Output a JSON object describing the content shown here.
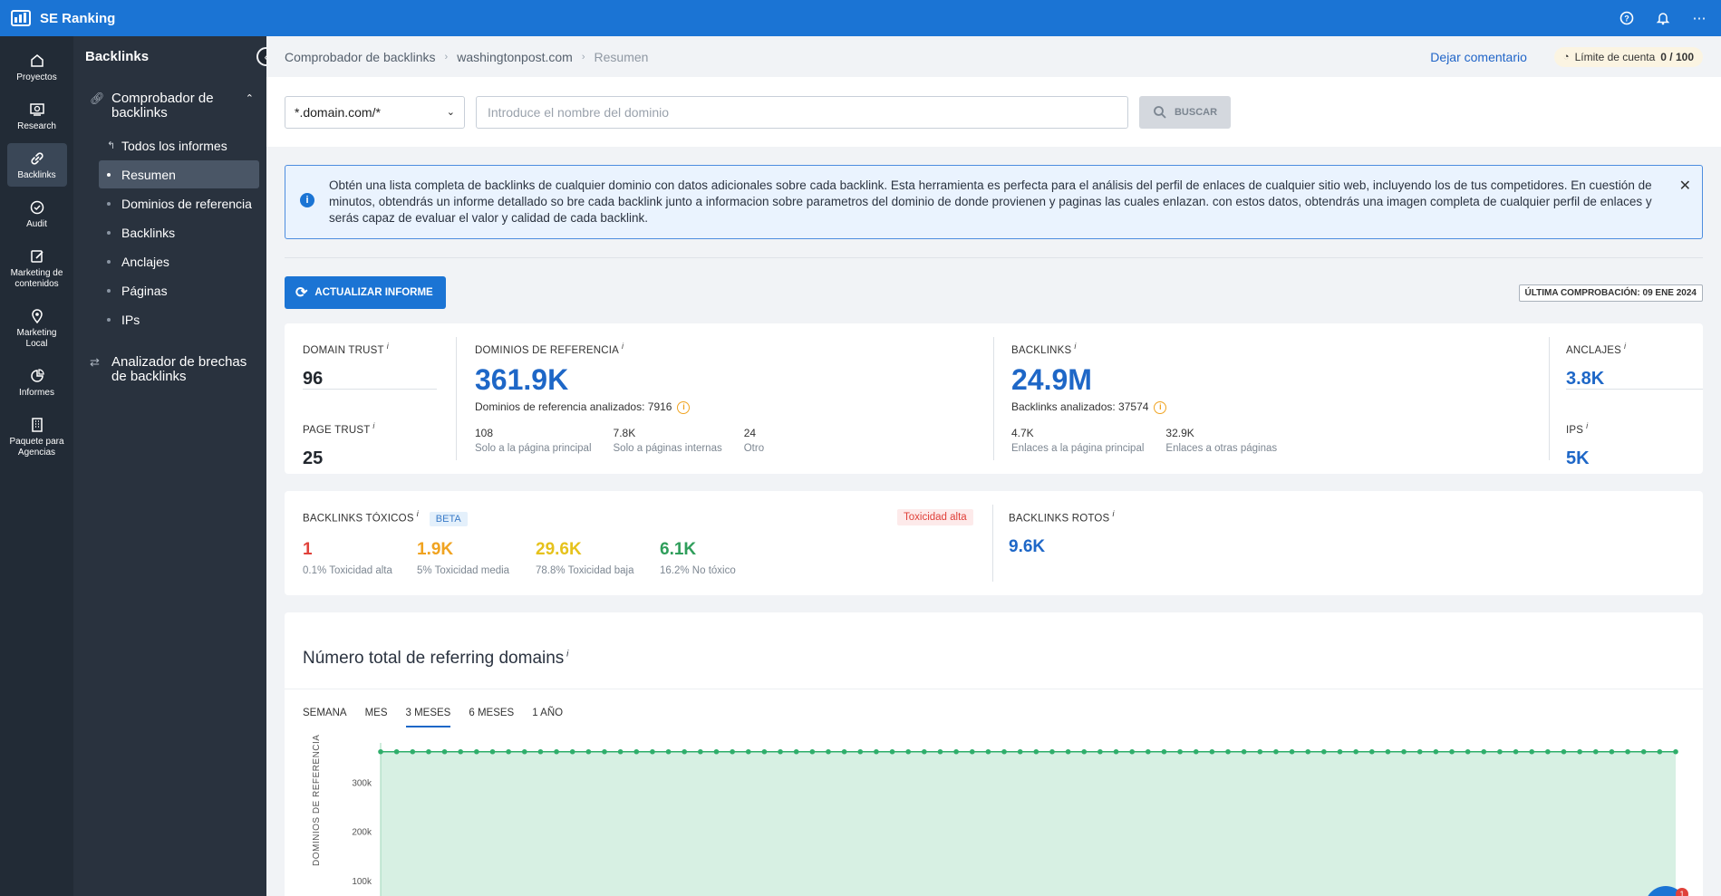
{
  "app": {
    "name": "SE Ranking"
  },
  "rail": [
    {
      "label": "Proyectos",
      "icon": "home-icon"
    },
    {
      "label": "Research",
      "icon": "research-icon"
    },
    {
      "label": "Backlinks",
      "icon": "link-icon",
      "active": true
    },
    {
      "label": "Audit",
      "icon": "check-circle-icon"
    },
    {
      "label": "Marketing de contenidos",
      "icon": "edit-icon"
    },
    {
      "label": "Marketing Local",
      "icon": "location-pin-icon"
    },
    {
      "label": "Informes",
      "icon": "pie-chart-icon"
    },
    {
      "label": "Paquete para Agencias",
      "icon": "building-icon"
    }
  ],
  "sidebar": {
    "title": "Backlinks",
    "group1": "Comprobador de backlinks",
    "items": [
      "Todos los informes",
      "Resumen",
      "Dominios de referencia",
      "Backlinks",
      "Anclajes",
      "Páginas",
      "IPs"
    ],
    "group2": "Analizador de brechas de backlinks"
  },
  "breadcrumb": {
    "c1": "Comprobador de backlinks",
    "c2": "washingtonpost.com",
    "c3": "Resumen"
  },
  "header": {
    "comment": "Dejar comentario",
    "limit_label": "Límite de cuenta",
    "limit_value": "0 / 100"
  },
  "search": {
    "select_value": "*.domain.com/*",
    "placeholder": "Introduce el nombre del dominio",
    "button": "BUSCAR"
  },
  "notice": {
    "text": "Obtén una lista completa de backlinks de cualquier dominio con datos adicionales sobre cada backlink. Esta herramienta es perfecta para el análisis del perfil de enlaces de cualquier sitio web, incluyendo los de tus competidores. En cuestión de minutos, obtendrás un informe detallado so bre cada backlink junto a informacion sobre parametros del dominio de donde provienen y paginas las cuales enlazan. con estos datos, obtendrás una imagen completa de cualquier perfil de enlaces y serás capaz de evaluar el valor y calidad de cada backlink."
  },
  "actions": {
    "refresh": "ACTUALIZAR INFORME",
    "last_check": "ÚLTIMA COMPROBACIÓN: 09 ENE 2024"
  },
  "stats": {
    "domain_trust_label": "DOMAIN TRUST",
    "domain_trust": "96",
    "page_trust_label": "PAGE TRUST",
    "page_trust": "25",
    "ref_label": "DOMINIOS DE REFERENCIA",
    "ref_value": "361.9K",
    "ref_analyzed": "Dominios de referencia analizados: 7916",
    "ref_sub": [
      {
        "value": "108",
        "label": "Solo a la página principal"
      },
      {
        "value": "7.8K",
        "label": "Solo a páginas internas"
      },
      {
        "value": "24",
        "label": "Otro"
      }
    ],
    "bl_label": "BACKLINKS",
    "bl_value": "24.9M",
    "bl_analyzed": "Backlinks analizados: 37574",
    "bl_sub": [
      {
        "value": "4.7K",
        "label": "Enlaces a la página principal"
      },
      {
        "value": "32.9K",
        "label": "Enlaces a otras páginas"
      }
    ],
    "anchors_label": "ANCLAJES",
    "anchors": "3.8K",
    "ips_label": "IPS",
    "ips": "5K"
  },
  "toxic": {
    "label": "BACKLINKS TÓXICOS",
    "beta": "BETA",
    "badge": "Toxicidad alta",
    "items": [
      {
        "value": "1",
        "label": "0.1% Toxicidad alta",
        "color": "#e0413a"
      },
      {
        "value": "1.9K",
        "label": "5% Toxicidad media",
        "color": "#f0a320"
      },
      {
        "value": "29.6K",
        "label": "78.8% Toxicidad baja",
        "color": "#e6c21c"
      },
      {
        "value": "6.1K",
        "label": "16.2% No tóxico",
        "color": "#2f9e5b"
      }
    ],
    "broken_label": "BACKLINKS ROTOS",
    "broken": "9.6K"
  },
  "chart_section": {
    "title": "Número total de referring domains",
    "tabs": [
      "SEMANA",
      "MES",
      "3 MESES",
      "6 MESES",
      "1 AÑO"
    ],
    "active_tab": "3 MESES"
  },
  "chart_data": {
    "type": "area",
    "ylabel": "DOMINIOS DE REFERENCIA",
    "yticks": [
      "300k",
      "200k",
      "100k"
    ],
    "series": [
      {
        "values": [
          362000,
          362000,
          362000,
          362000,
          362000,
          362000,
          362000,
          362000,
          362000,
          362000,
          362000,
          362000,
          362000,
          362000,
          362000,
          362000,
          362000,
          362000,
          362000,
          362000,
          362000,
          362000,
          362000,
          362000,
          362000,
          362000,
          362000,
          362000,
          362000,
          362000,
          362000,
          362000,
          362000,
          362000,
          362000,
          362000,
          362000,
          362000,
          362000,
          362000,
          362000,
          362000,
          362000,
          362000,
          362000,
          362000,
          362000,
          362000,
          362000,
          362000,
          362000,
          362000,
          362000,
          362000,
          362000,
          362000,
          362000,
          362000,
          362000,
          362000,
          362000,
          362000,
          362000,
          362000,
          362000,
          362000,
          362000,
          362000,
          362000,
          362000,
          362000,
          362000,
          362000,
          362000,
          362000,
          362000,
          362000,
          362000,
          362000,
          362000,
          362000,
          362000
        ]
      }
    ],
    "color": "#2fae6b",
    "fill": "#d7f0e3"
  },
  "chat": {
    "count": "1"
  }
}
